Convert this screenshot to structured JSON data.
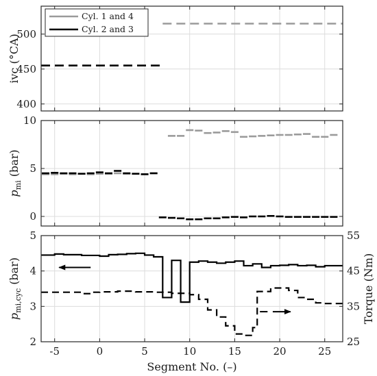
{
  "chart_data": [
    {
      "type": "line",
      "ylabel": "ivc (°CA)",
      "xlim": [
        -6.5,
        27
      ],
      "ylim": [
        390,
        540
      ],
      "yticks": [
        400,
        450,
        500
      ],
      "xticks": [
        -5,
        0,
        5,
        10,
        15,
        20,
        25
      ],
      "grid": true,
      "legend": {
        "placement": "top-left",
        "entries": [
          "Cyl. 1 and 4",
          "Cyl. 2 and 3"
        ]
      },
      "series": [
        {
          "name": "Cyl. 1 and 4",
          "color": "#9a9a9a",
          "style": "dashed",
          "segments": [
            {
              "x": [
                -6.5,
                7
              ],
              "y": 455
            },
            {
              "x": [
                7,
                27
              ],
              "y": 515
            }
          ]
        },
        {
          "name": "Cyl. 2 and 3",
          "color": "#000000",
          "style": "dashed",
          "segments": [
            {
              "x": [
                -6.5,
                7
              ],
              "y": 455
            }
          ]
        }
      ]
    },
    {
      "type": "line",
      "ylabel": "p_mi (bar)",
      "ylabel_main": "p",
      "ylabel_sub": "mi",
      "ylabel_unit": " (bar)",
      "xlim": [
        -6.5,
        27
      ],
      "ylim": [
        -1,
        10
      ],
      "yticks": [
        0,
        5,
        10
      ],
      "xticks": [
        -5,
        0,
        5,
        10,
        15,
        20,
        25
      ],
      "grid": true,
      "series": [
        {
          "name": "Cyl. 1 and 4",
          "color": "#9a9a9a",
          "points": [
            [
              -6,
              4.4
            ],
            [
              -5,
              4.4
            ],
            [
              -4,
              4.45
            ],
            [
              -3,
              4.4
            ],
            [
              -2,
              4.45
            ],
            [
              -1,
              4.4
            ],
            [
              0,
              4.45
            ],
            [
              1,
              4.45
            ],
            [
              2,
              4.5
            ],
            [
              3,
              4.45
            ],
            [
              4,
              4.45
            ],
            [
              5,
              4.4
            ],
            [
              6,
              4.5
            ],
            [
              8,
              8.4
            ],
            [
              9,
              8.4
            ],
            [
              10,
              9.0
            ],
            [
              11,
              8.95
            ],
            [
              12,
              8.7
            ],
            [
              13,
              8.75
            ],
            [
              14,
              8.9
            ],
            [
              15,
              8.8
            ],
            [
              16,
              8.3
            ],
            [
              17,
              8.35
            ],
            [
              18,
              8.4
            ],
            [
              19,
              8.45
            ],
            [
              20,
              8.5
            ],
            [
              21,
              8.5
            ],
            [
              22,
              8.55
            ],
            [
              23,
              8.6
            ],
            [
              24,
              8.3
            ],
            [
              25,
              8.3
            ],
            [
              26,
              8.5
            ]
          ]
        },
        {
          "name": "Cyl. 2 and 3",
          "color": "#000000",
          "points": [
            [
              -6,
              4.5
            ],
            [
              -5,
              4.55
            ],
            [
              -4,
              4.5
            ],
            [
              -3,
              4.5
            ],
            [
              -2,
              4.45
            ],
            [
              -1,
              4.5
            ],
            [
              0,
              4.6
            ],
            [
              1,
              4.5
            ],
            [
              2,
              4.75
            ],
            [
              3,
              4.5
            ],
            [
              4,
              4.45
            ],
            [
              5,
              4.4
            ],
            [
              6,
              4.5
            ],
            [
              7,
              -0.1
            ],
            [
              8,
              -0.15
            ],
            [
              9,
              -0.2
            ],
            [
              10,
              -0.3
            ],
            [
              11,
              -0.3
            ],
            [
              12,
              -0.2
            ],
            [
              13,
              -0.2
            ],
            [
              14,
              -0.1
            ],
            [
              15,
              -0.05
            ],
            [
              16,
              -0.1
            ],
            [
              17,
              0.0
            ],
            [
              18,
              0.0
            ],
            [
              19,
              0.05
            ],
            [
              20,
              0.0
            ],
            [
              21,
              -0.05
            ],
            [
              22,
              -0.05
            ],
            [
              23,
              -0.05
            ],
            [
              24,
              -0.05
            ],
            [
              25,
              -0.05
            ],
            [
              26,
              -0.05
            ]
          ]
        }
      ]
    },
    {
      "type": "line",
      "ylabel": "p_mi,cyc (bar)",
      "ylabel_main": "p",
      "ylabel_sub": "mi,cyc",
      "ylabel_unit": " (bar)",
      "y2label": "Torque (Nm)",
      "xlabel": "Segment No. (–)",
      "xlim": [
        -6.5,
        27
      ],
      "ylim": [
        2,
        5
      ],
      "yticks": [
        2,
        3,
        4,
        5
      ],
      "y2lim": [
        25,
        55
      ],
      "y2ticks": [
        25,
        35,
        45,
        55
      ],
      "xticks": [
        -5,
        0,
        5,
        10,
        15,
        20,
        25
      ],
      "grid": true,
      "annotations": [
        {
          "type": "arrow",
          "direction": "left",
          "axis": "left",
          "x_from": -1,
          "x_to": -4.5,
          "y": 4.1
        },
        {
          "type": "arrow",
          "direction": "right",
          "axis": "right",
          "x_from": 17.8,
          "x_to": 21.2,
          "y": 33.5
        }
      ],
      "series": [
        {
          "name": "p_mi,cyc",
          "axis": "left",
          "color": "#000000",
          "style": "solid",
          "steps": [
            [
              -6.5,
              4.45
            ],
            [
              -5,
              4.48
            ],
            [
              -4,
              4.46
            ],
            [
              -2,
              4.44
            ],
            [
              0,
              4.42
            ],
            [
              1,
              4.46
            ],
            [
              2,
              4.47
            ],
            [
              3,
              4.49
            ],
            [
              4,
              4.5
            ],
            [
              5,
              4.45
            ],
            [
              6,
              4.4
            ],
            [
              7,
              3.25
            ],
            [
              8,
              4.3
            ],
            [
              9,
              3.12
            ],
            [
              10,
              4.25
            ],
            [
              11,
              4.28
            ],
            [
              12,
              4.25
            ],
            [
              13,
              4.22
            ],
            [
              14,
              4.25
            ],
            [
              15,
              4.28
            ],
            [
              16,
              4.15
            ],
            [
              17,
              4.2
            ],
            [
              18,
              4.1
            ],
            [
              19,
              4.15
            ],
            [
              20,
              4.16
            ],
            [
              21,
              4.18
            ],
            [
              22,
              4.15
            ],
            [
              23,
              4.16
            ],
            [
              24,
              4.12
            ],
            [
              25,
              4.15
            ],
            [
              27,
              4.15
            ]
          ]
        },
        {
          "name": "Torque",
          "axis": "right",
          "color": "#000000",
          "style": "dashed",
          "steps": [
            [
              -6.5,
              39
            ],
            [
              -4,
              39
            ],
            [
              -2,
              38.6
            ],
            [
              -1,
              39
            ],
            [
              0,
              39.1
            ],
            [
              2,
              39.3
            ],
            [
              4,
              39.1
            ],
            [
              6,
              39
            ],
            [
              8,
              38.7
            ],
            [
              10,
              38.3
            ],
            [
              11,
              37
            ],
            [
              12,
              34
            ],
            [
              13,
              32
            ],
            [
              14,
              29.5
            ],
            [
              15,
              27.2
            ],
            [
              16,
              26.8
            ],
            [
              17,
              29
            ],
            [
              17.5,
              39.2
            ],
            [
              19,
              40.2
            ],
            [
              21,
              39.5
            ],
            [
              22,
              37.5
            ],
            [
              23,
              37
            ],
            [
              24,
              36
            ],
            [
              25,
              35.8
            ],
            [
              27,
              35.8
            ]
          ]
        }
      ]
    }
  ]
}
